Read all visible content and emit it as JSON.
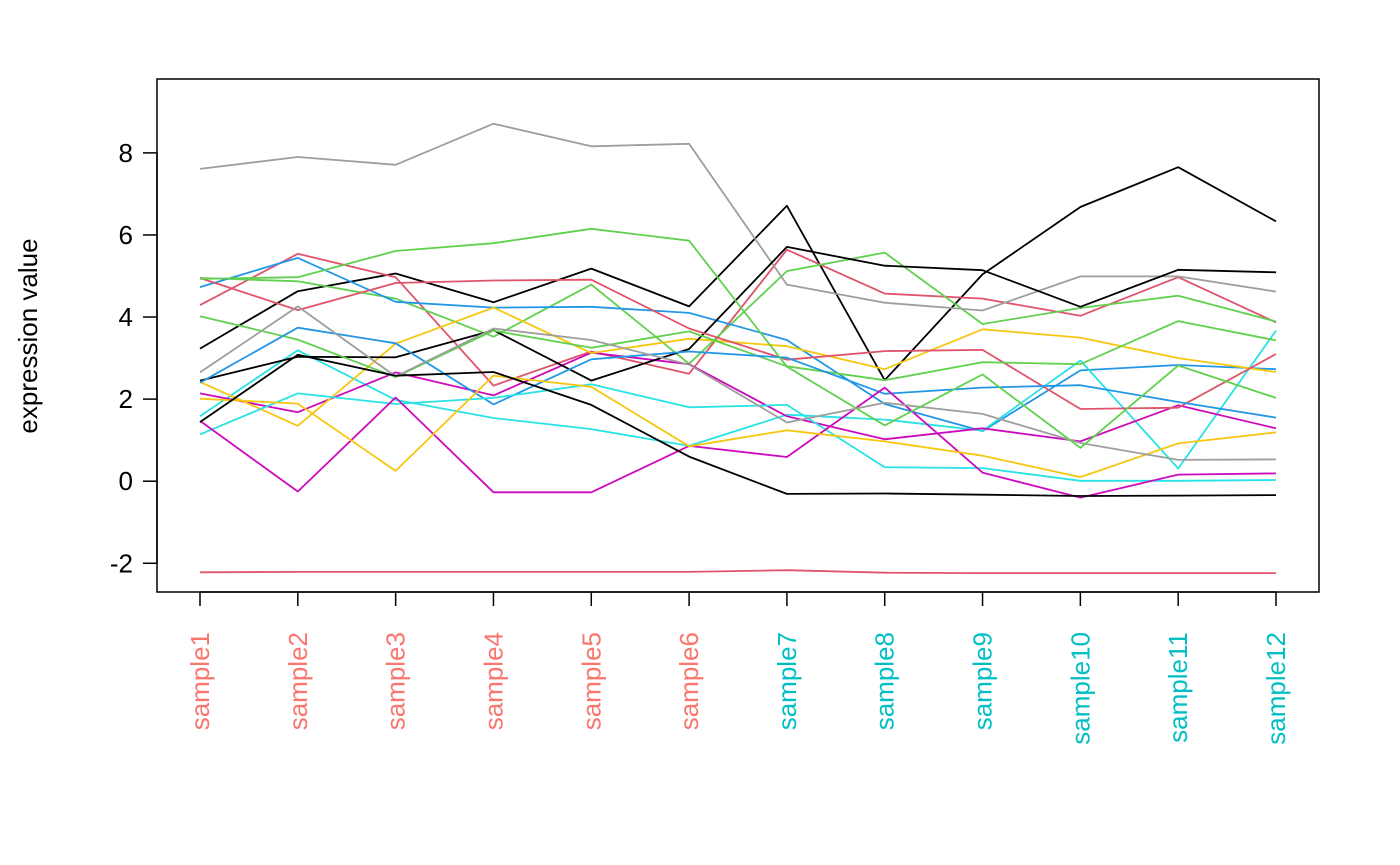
{
  "chart_data": {
    "type": "line",
    "ylabel": "expression value",
    "ylim": [
      -2.7,
      9.8
    ],
    "y_ticks": [
      -2,
      0,
      2,
      4,
      6,
      8
    ],
    "categories": [
      "sample1",
      "sample2",
      "sample3",
      "sample4",
      "sample5",
      "sample6",
      "sample7",
      "sample8",
      "sample9",
      "sample10",
      "sample11",
      "sample12"
    ],
    "category_colors": [
      "#F8766D",
      "#F8766D",
      "#F8766D",
      "#F8766D",
      "#F8766D",
      "#F8766D",
      "#00BFC4",
      "#00BFC4",
      "#00BFC4",
      "#00BFC4",
      "#00BFC4",
      "#00BFC4"
    ],
    "series": [
      {
        "color": "#000000",
        "values": [
          3.23,
          4.63,
          5.06,
          4.36,
          5.18,
          4.26,
          6.71,
          2.46,
          5.04,
          6.68,
          7.65,
          6.33
        ]
      },
      {
        "color": "#DF536B",
        "values": [
          4.29,
          5.54,
          4.97,
          2.33,
          3.16,
          2.62,
          5.64,
          4.57,
          4.45,
          4.03,
          4.97,
          3.87
        ]
      },
      {
        "color": "#61D04F",
        "values": [
          4.95,
          4.87,
          4.45,
          3.52,
          4.79,
          2.86,
          5.12,
          5.57,
          3.83,
          4.22,
          4.52,
          3.89
        ]
      },
      {
        "color": "#2297E6",
        "values": [
          4.73,
          5.44,
          4.37,
          4.23,
          4.25,
          4.1,
          3.44,
          1.88,
          1.22,
          2.7,
          2.83,
          2.73
        ]
      },
      {
        "color": "#28E2E5",
        "values": [
          1.58,
          3.19,
          1.98,
          1.54,
          1.27,
          0.86,
          1.62,
          1.5,
          1.23,
          2.94,
          0.31,
          3.67
        ]
      },
      {
        "color": "#CD0BBC",
        "values": [
          2.14,
          1.68,
          2.65,
          2.09,
          3.13,
          2.85,
          1.58,
          1.02,
          1.29,
          0.97,
          1.85,
          1.29
        ]
      },
      {
        "color": "#F5C710",
        "values": [
          2.42,
          1.35,
          3.35,
          4.23,
          3.12,
          3.47,
          3.29,
          2.73,
          3.7,
          3.5,
          3.0,
          2.66
        ]
      },
      {
        "color": "#9E9E9E",
        "values": [
          7.61,
          7.9,
          7.71,
          8.71,
          8.16,
          8.22,
          4.79,
          4.35,
          4.16,
          4.99,
          4.99,
          4.62
        ]
      },
      {
        "color": "#000000",
        "values": [
          2.45,
          3.03,
          3.02,
          3.68,
          2.45,
          3.22,
          5.71,
          5.25,
          5.14,
          4.25,
          5.15,
          5.09
        ]
      },
      {
        "color": "#DF536B",
        "values": [
          4.95,
          4.17,
          4.83,
          4.89,
          4.91,
          3.72,
          2.96,
          3.17,
          3.2,
          1.76,
          1.79,
          3.1
        ]
      },
      {
        "color": "#61D04F",
        "values": [
          4.02,
          3.45,
          2.54,
          3.67,
          3.25,
          3.65,
          2.8,
          2.46,
          2.9,
          2.85,
          3.9,
          3.43
        ]
      },
      {
        "color": "#2297E6",
        "values": [
          2.4,
          3.74,
          3.36,
          1.87,
          2.97,
          3.16,
          3.01,
          2.13,
          2.28,
          2.34,
          1.93,
          1.55
        ]
      },
      {
        "color": "#28E2E5",
        "values": [
          1.14,
          2.14,
          1.88,
          2.03,
          2.36,
          1.8,
          1.86,
          0.34,
          0.32,
          0.01,
          0.01,
          0.03
        ]
      },
      {
        "color": "#CD0BBC",
        "values": [
          1.47,
          -0.25,
          2.04,
          -0.27,
          -0.27,
          0.86,
          0.59,
          2.28,
          0.21,
          -0.4,
          0.16,
          0.19
        ]
      },
      {
        "color": "#F5C710",
        "values": [
          2.01,
          1.89,
          0.25,
          2.57,
          2.3,
          0.85,
          1.24,
          0.97,
          0.62,
          0.1,
          0.92,
          1.19
        ]
      },
      {
        "color": "#9E9E9E",
        "values": [
          2.65,
          4.26,
          2.55,
          3.72,
          3.44,
          2.84,
          1.43,
          1.91,
          1.64,
          0.93,
          0.52,
          0.53
        ]
      },
      {
        "color": "#000000",
        "values": [
          1.44,
          3.08,
          2.57,
          2.66,
          1.86,
          0.6,
          -0.31,
          -0.3,
          -0.33,
          -0.36,
          -0.35,
          -0.34
        ]
      },
      {
        "color": "#DF536B",
        "values": [
          -2.22,
          -2.21,
          -2.21,
          -2.21,
          -2.21,
          -2.21,
          -2.17,
          -2.23,
          -2.24,
          -2.24,
          -2.24,
          -2.24
        ]
      },
      {
        "color": "#61D04F",
        "values": [
          4.93,
          4.97,
          5.61,
          5.8,
          6.15,
          5.86,
          2.79,
          1.36,
          2.6,
          0.81,
          2.82,
          2.03
        ]
      }
    ]
  }
}
